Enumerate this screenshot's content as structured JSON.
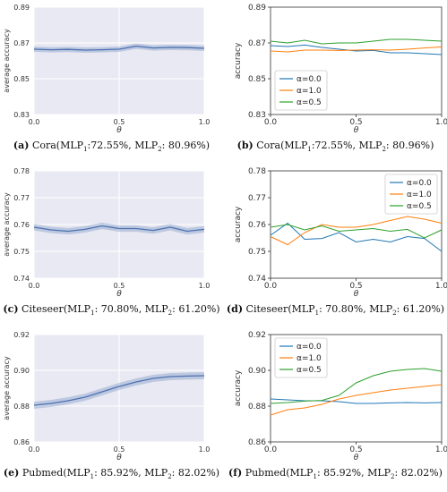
{
  "chart_data": [
    {
      "id": "a",
      "type": "area",
      "ylabel": "average accuracy",
      "xlabel": "θ",
      "ylim": [
        0.83,
        0.89
      ],
      "yticks": [
        "0.83",
        "0.85",
        "0.87",
        "0.89"
      ],
      "xlim": [
        0,
        1
      ],
      "xticks": [
        "0.0",
        "0.5",
        "1.0"
      ],
      "background": "#e9e9f3",
      "grid": true,
      "series": [
        {
          "color": "#4c72b0",
          "x": [
            0,
            0.1,
            0.2,
            0.3,
            0.4,
            0.5,
            0.6,
            0.7,
            0.8,
            0.9,
            1.0
          ],
          "values": [
            0.8665,
            0.8662,
            0.8664,
            0.866,
            0.8662,
            0.8665,
            0.8682,
            0.8672,
            0.8675,
            0.8674,
            0.867
          ],
          "band": 0.0015
        }
      ],
      "caption": {
        "label": "(a)",
        "text_pre": "Cora(MLP",
        "s1": "1",
        "text_mid": ":72.55%, MLP",
        "s2": "2",
        "text_post": ": 80.96%)"
      }
    },
    {
      "id": "b",
      "type": "line",
      "ylabel": "accuracy",
      "xlabel": "θ",
      "ylim": [
        0.83,
        0.89
      ],
      "yticks": [
        "0.83",
        "0.85",
        "0.87",
        "0.89"
      ],
      "xlim": [
        0,
        1
      ],
      "xticks": [
        "0.0",
        "0.5",
        "1.0"
      ],
      "legend": "bottom-left",
      "grid": false,
      "series": [
        {
          "name": "α=0.0",
          "color": "#1f77b4",
          "x": [
            0,
            0.1,
            0.2,
            0.3,
            0.4,
            0.5,
            0.6,
            0.7,
            0.8,
            0.9,
            1.0
          ],
          "values": [
            0.8685,
            0.868,
            0.8688,
            0.8675,
            0.8665,
            0.8655,
            0.8658,
            0.8645,
            0.8645,
            0.864,
            0.8635
          ]
        },
        {
          "name": "α=1.0",
          "color": "#ff7f0e",
          "x": [
            0,
            0.1,
            0.2,
            0.3,
            0.4,
            0.5,
            0.6,
            0.7,
            0.8,
            0.9,
            1.0
          ],
          "values": [
            0.8655,
            0.865,
            0.866,
            0.866,
            0.8658,
            0.866,
            0.8662,
            0.866,
            0.8665,
            0.8672,
            0.8678
          ]
        },
        {
          "name": "α=0.5",
          "color": "#2ca02c",
          "x": [
            0,
            0.1,
            0.2,
            0.3,
            0.4,
            0.5,
            0.6,
            0.7,
            0.8,
            0.9,
            1.0
          ],
          "values": [
            0.871,
            0.87,
            0.8715,
            0.8695,
            0.87,
            0.87,
            0.871,
            0.872,
            0.872,
            0.8715,
            0.871
          ]
        }
      ],
      "caption": {
        "label": "(b)",
        "text_pre": "Cora(MLP",
        "s1": "1",
        "text_mid": ":72.55%, MLP",
        "s2": "2",
        "text_post": ": 80.96%)"
      }
    },
    {
      "id": "c",
      "type": "area",
      "ylabel": "average accuracy",
      "xlabel": "θ",
      "ylim": [
        0.74,
        0.78
      ],
      "yticks": [
        "0.74",
        "0.75",
        "0.76",
        "0.77",
        "0.78"
      ],
      "xlim": [
        0,
        1
      ],
      "xticks": [
        "0.0",
        "0.5",
        "1.0"
      ],
      "background": "#e9e9f3",
      "grid": true,
      "series": [
        {
          "color": "#4c72b0",
          "x": [
            0,
            0.1,
            0.2,
            0.3,
            0.4,
            0.5,
            0.6,
            0.7,
            0.8,
            0.9,
            1.0
          ],
          "values": [
            0.759,
            0.758,
            0.7575,
            0.7582,
            0.7595,
            0.7585,
            0.7585,
            0.7578,
            0.759,
            0.7575,
            0.7582
          ],
          "band": 0.0012
        }
      ],
      "caption": {
        "label": "(c)",
        "text_pre": "Citeseer(MLP",
        "s1": "1",
        "text_mid": ": 70.80%, MLP",
        "s2": "2",
        "text_post": ": 61.20%)"
      }
    },
    {
      "id": "d",
      "type": "line",
      "ylabel": "accuracy",
      "xlabel": "θ",
      "ylim": [
        0.74,
        0.78
      ],
      "yticks": [
        "0.74",
        "0.75",
        "0.76",
        "0.77",
        "0.78"
      ],
      "xlim": [
        0,
        1
      ],
      "xticks": [
        "0.0",
        "0.5",
        "1.0"
      ],
      "legend": "top-right",
      "grid": false,
      "series": [
        {
          "name": "α=0.0",
          "color": "#1f77b4",
          "x": [
            0,
            0.1,
            0.2,
            0.3,
            0.4,
            0.5,
            0.6,
            0.7,
            0.8,
            0.9,
            1.0
          ],
          "values": [
            0.756,
            0.7605,
            0.7545,
            0.7548,
            0.757,
            0.7535,
            0.7545,
            0.7535,
            0.7555,
            0.7548,
            0.75
          ]
        },
        {
          "name": "α=1.0",
          "color": "#ff7f0e",
          "x": [
            0,
            0.1,
            0.2,
            0.3,
            0.4,
            0.5,
            0.6,
            0.7,
            0.8,
            0.9,
            1.0
          ],
          "values": [
            0.7555,
            0.7525,
            0.757,
            0.76,
            0.759,
            0.759,
            0.76,
            0.7615,
            0.763,
            0.762,
            0.7605
          ]
        },
        {
          "name": "α=0.5",
          "color": "#2ca02c",
          "x": [
            0,
            0.1,
            0.2,
            0.3,
            0.4,
            0.5,
            0.6,
            0.7,
            0.8,
            0.9,
            1.0
          ],
          "values": [
            0.759,
            0.76,
            0.758,
            0.7595,
            0.7575,
            0.758,
            0.7585,
            0.7575,
            0.7582,
            0.755,
            0.758
          ]
        }
      ],
      "caption": {
        "label": "(d)",
        "text_pre": "Citeseer(MLP",
        "s1": "1",
        "text_mid": ": 70.80%, MLP",
        "s2": "2",
        "text_post": ": 61.20%)"
      }
    },
    {
      "id": "e",
      "type": "area",
      "ylabel": "average accuracy",
      "xlabel": "θ",
      "ylim": [
        0.86,
        0.92
      ],
      "yticks": [
        "0.86",
        "0.88",
        "0.90",
        "0.92"
      ],
      "xlim": [
        0,
        1
      ],
      "xticks": [
        "0.0",
        "0.5",
        "1.0"
      ],
      "background": "#e9e9f3",
      "grid": true,
      "series": [
        {
          "color": "#4c72b0",
          "x": [
            0,
            0.1,
            0.2,
            0.3,
            0.4,
            0.5,
            0.6,
            0.7,
            0.8,
            0.9,
            1.0
          ],
          "values": [
            0.8805,
            0.8815,
            0.883,
            0.885,
            0.888,
            0.891,
            0.8935,
            0.8955,
            0.8965,
            0.8968,
            0.897
          ],
          "band": 0.002
        }
      ],
      "caption": {
        "label": "(e)",
        "text_pre": "Pubmed(MLP",
        "s1": "1",
        "text_mid": ": 85.92%, MLP",
        "s2": "2",
        "text_post": ": 82.02%)"
      }
    },
    {
      "id": "f",
      "type": "line",
      "ylabel": "accuracy",
      "xlabel": "θ",
      "ylim": [
        0.86,
        0.92
      ],
      "yticks": [
        "0.86",
        "0.88",
        "0.90",
        "0.92"
      ],
      "xlim": [
        0,
        1
      ],
      "xticks": [
        "0.0",
        "0.5",
        "1.0"
      ],
      "legend": "top-left",
      "grid": false,
      "series": [
        {
          "name": "α=0.0",
          "color": "#1f77b4",
          "x": [
            0,
            0.1,
            0.2,
            0.3,
            0.4,
            0.5,
            0.6,
            0.7,
            0.8,
            0.9,
            1.0
          ],
          "values": [
            0.884,
            0.8835,
            0.883,
            0.883,
            0.8825,
            0.8815,
            0.8815,
            0.8818,
            0.882,
            0.8818,
            0.882
          ]
        },
        {
          "name": "α=1.0",
          "color": "#ff7f0e",
          "x": [
            0,
            0.1,
            0.2,
            0.3,
            0.4,
            0.5,
            0.6,
            0.7,
            0.8,
            0.9,
            1.0
          ],
          "values": [
            0.875,
            0.878,
            0.879,
            0.881,
            0.884,
            0.886,
            0.8875,
            0.889,
            0.89,
            0.891,
            0.892
          ]
        },
        {
          "name": "α=0.5",
          "color": "#2ca02c",
          "x": [
            0,
            0.1,
            0.2,
            0.3,
            0.4,
            0.5,
            0.6,
            0.7,
            0.8,
            0.9,
            1.0
          ],
          "values": [
            0.8815,
            0.882,
            0.8828,
            0.8832,
            0.886,
            0.893,
            0.897,
            0.8995,
            0.9005,
            0.901,
            0.8995
          ]
        }
      ],
      "caption": {
        "label": "(f)",
        "text_pre": "Pubmed(MLP",
        "s1": "1",
        "text_mid": ": 85.92%, MLP",
        "s2": "2",
        "text_post": ": 82.02%)"
      }
    }
  ]
}
